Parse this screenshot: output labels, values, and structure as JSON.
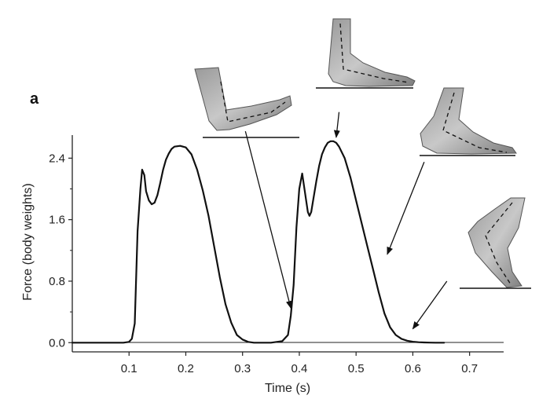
{
  "chart_data": {
    "type": "line",
    "panel_label": "a",
    "xlabel": "Time (s)",
    "ylabel": "Force (body weights)",
    "xlim": [
      0.0,
      0.76
    ],
    "ylim": [
      -0.12,
      2.7
    ],
    "xticks": [
      0.1,
      0.2,
      0.3,
      0.4,
      0.5,
      0.6,
      0.7
    ],
    "xtick_labels": [
      "0.1",
      "0.2",
      "0.3",
      "0.4",
      "0.5",
      "0.6",
      "0.7"
    ],
    "yticks": [
      0.0,
      0.8,
      1.6,
      2.4
    ],
    "ytick_labels": [
      "0.0",
      "0.8",
      "1.6",
      "2.4"
    ],
    "yminor_ticks": [
      0.4,
      1.2,
      2.0
    ],
    "grid": false,
    "series": [
      {
        "color": "#111111",
        "x": [
          0.0,
          0.05,
          0.09,
          0.1,
          0.105,
          0.11,
          0.115,
          0.12,
          0.123,
          0.127,
          0.13,
          0.135,
          0.14,
          0.145,
          0.15,
          0.155,
          0.16,
          0.165,
          0.17,
          0.175,
          0.18,
          0.19,
          0.2,
          0.21,
          0.22,
          0.23,
          0.24,
          0.25,
          0.26,
          0.27,
          0.28,
          0.29,
          0.3,
          0.31,
          0.32,
          0.33,
          0.35,
          0.37,
          0.38,
          0.385,
          0.39,
          0.395,
          0.4,
          0.405,
          0.41,
          0.415,
          0.418,
          0.421,
          0.425,
          0.43,
          0.435,
          0.44,
          0.445,
          0.45,
          0.455,
          0.46,
          0.465,
          0.47,
          0.48,
          0.49,
          0.5,
          0.51,
          0.52,
          0.53,
          0.54,
          0.55,
          0.56,
          0.57,
          0.58,
          0.59,
          0.6,
          0.61,
          0.62,
          0.63,
          0.64,
          0.655
        ],
        "y": [
          0.0,
          0.0,
          0.0,
          0.01,
          0.05,
          0.25,
          1.45,
          2.0,
          2.25,
          2.18,
          1.97,
          1.85,
          1.8,
          1.82,
          1.92,
          2.08,
          2.25,
          2.38,
          2.46,
          2.52,
          2.55,
          2.56,
          2.54,
          2.45,
          2.25,
          1.98,
          1.65,
          1.25,
          0.85,
          0.5,
          0.26,
          0.1,
          0.04,
          0.01,
          0.0,
          0.0,
          0.0,
          0.02,
          0.1,
          0.35,
          0.75,
          1.5,
          2.0,
          2.2,
          1.95,
          1.7,
          1.65,
          1.7,
          1.88,
          2.1,
          2.3,
          2.45,
          2.54,
          2.6,
          2.62,
          2.62,
          2.6,
          2.55,
          2.4,
          2.15,
          1.85,
          1.55,
          1.25,
          0.95,
          0.65,
          0.38,
          0.2,
          0.1,
          0.05,
          0.025,
          0.012,
          0.006,
          0.003,
          0.001,
          0.0,
          0.0
        ]
      }
    ],
    "annotations": [
      {
        "type": "arrow",
        "label": "foot-heel-lift",
        "from": [
          0.305,
          2.75
        ],
        "to": [
          0.385,
          0.45
        ]
      },
      {
        "type": "arrow",
        "label": "foot-flat",
        "from": [
          0.47,
          3.0
        ],
        "to": [
          0.465,
          2.67
        ]
      },
      {
        "type": "arrow",
        "label": "foot-mid-stance",
        "from": [
          0.62,
          2.35
        ],
        "to": [
          0.555,
          1.15
        ]
      },
      {
        "type": "arrow",
        "label": "foot-toe-off",
        "from": [
          0.66,
          0.8
        ],
        "to": [
          0.6,
          0.18
        ]
      }
    ]
  }
}
